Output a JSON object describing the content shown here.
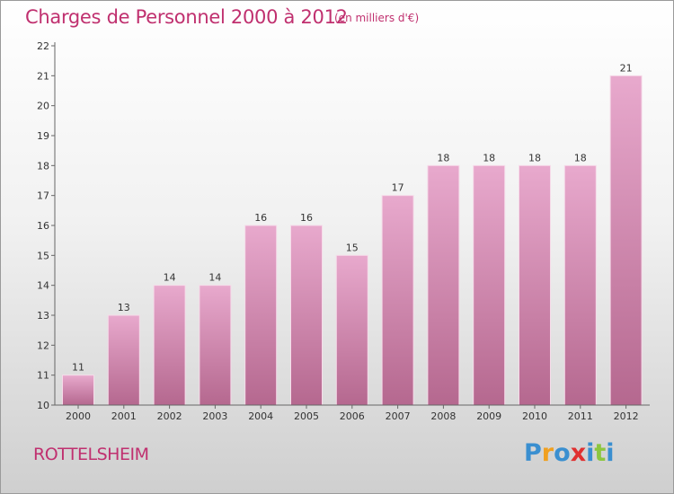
{
  "header": {
    "title": "Charges de Personnel 2000 à 2012",
    "subtitle": "(en milliers d'€)"
  },
  "footer": {
    "place": "ROTTELSHEIM",
    "logo": {
      "text": "Proxiti",
      "letters": [
        {
          "ch": "P",
          "color": "#3a8fd0"
        },
        {
          "ch": "r",
          "color": "#f0a020"
        },
        {
          "ch": "o",
          "color": "#3a8fd0"
        },
        {
          "ch": "x",
          "color": "#e03030"
        },
        {
          "ch": "i",
          "color": "#3a8fd0"
        },
        {
          "ch": "t",
          "color": "#8cc63f"
        },
        {
          "ch": "i",
          "color": "#3a8fd0"
        }
      ]
    }
  },
  "colors": {
    "bar_top": "#e8a9cd",
    "bar_bottom": "#b5688f",
    "accent": "#c0306f"
  },
  "chart_data": {
    "type": "bar",
    "categories": [
      "2000",
      "2001",
      "2002",
      "2003",
      "2004",
      "2005",
      "2006",
      "2007",
      "2008",
      "2009",
      "2010",
      "2011",
      "2012"
    ],
    "values": [
      11,
      13,
      14,
      14,
      16,
      16,
      15,
      17,
      18,
      18,
      18,
      18,
      21
    ],
    "title": "Charges de Personnel 2000 à 2012",
    "subtitle": "(en milliers d'€)",
    "xlabel": "",
    "ylabel": "",
    "ylim": [
      10,
      22
    ],
    "yticks": [
      10,
      11,
      12,
      13,
      14,
      15,
      16,
      17,
      18,
      19,
      20,
      21,
      22
    ],
    "grid": false,
    "legend": "none"
  }
}
